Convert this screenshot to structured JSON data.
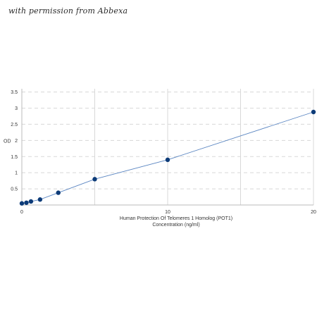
{
  "watermark": "with permission from Abbexa",
  "chart_data": {
    "type": "scatter",
    "title": "",
    "xlabel_line1": "Human Protection Of Telomeres 1 Homolog (POT1)",
    "xlabel_line2": "Concentration (ng/ml)",
    "ylabel": "OD",
    "xlim": [
      0,
      20
    ],
    "ylim": [
      0,
      3.6
    ],
    "x_ticks": [
      0,
      10,
      20
    ],
    "y_ticks": [
      0.5,
      1,
      1.5,
      2,
      2.5,
      3,
      3.5
    ],
    "grid": {
      "vertical": true,
      "horizontal_dashed": true
    },
    "colors": {
      "points": "#0d3b78",
      "line": "#5b86c2",
      "grid": "#d8d8d8"
    },
    "series": [
      {
        "x": [
          0,
          0.3125,
          0.625,
          1.25,
          2.5,
          5,
          10,
          20
        ],
        "y": [
          0.05,
          0.07,
          0.11,
          0.17,
          0.38,
          0.8,
          1.4,
          2.88
        ]
      }
    ]
  }
}
